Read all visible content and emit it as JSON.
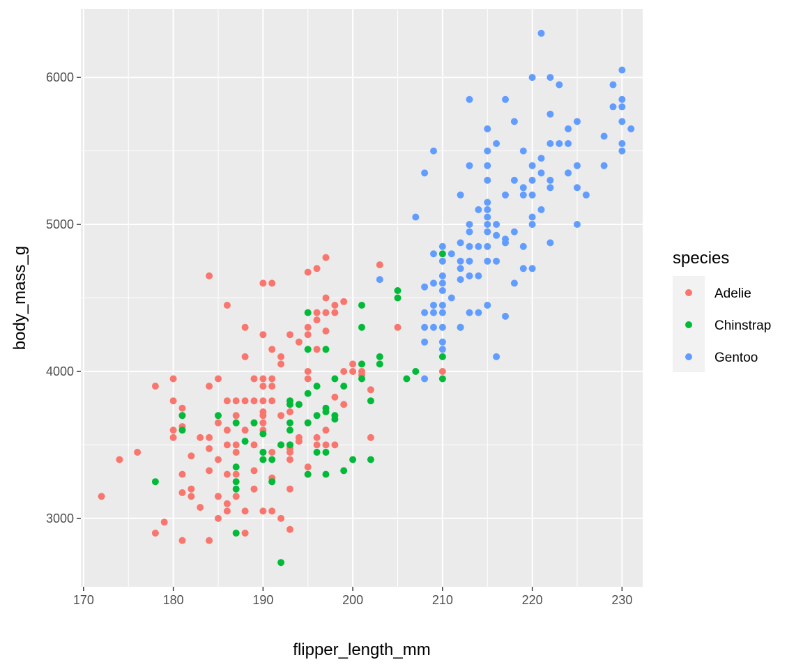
{
  "chart_data": {
    "type": "scatter",
    "xlabel": "flipper_length_mm",
    "ylabel": "body_mass_g",
    "xlim": [
      169.7,
      232.3
    ],
    "ylim": [
      2535,
      6465
    ],
    "x_ticks": [
      170,
      180,
      190,
      200,
      210,
      220,
      230
    ],
    "y_ticks": [
      3000,
      4000,
      5000,
      6000
    ],
    "grid": true,
    "legend": {
      "title": "species",
      "position": "right"
    },
    "series": [
      {
        "name": "Adelie",
        "color": "#F8766D",
        "points": [
          [
            172,
            3150
          ],
          [
            174,
            3400
          ],
          [
            176,
            3450
          ],
          [
            178,
            3900
          ],
          [
            178,
            2900
          ],
          [
            179,
            2975
          ],
          [
            180,
            3950
          ],
          [
            180,
            3800
          ],
          [
            180,
            3600
          ],
          [
            180,
            3550
          ],
          [
            181,
            3750
          ],
          [
            181,
            3700
          ],
          [
            181,
            3625
          ],
          [
            181,
            3300
          ],
          [
            181,
            3175
          ],
          [
            181,
            2850
          ],
          [
            182,
            3425
          ],
          [
            182,
            3200
          ],
          [
            182,
            3150
          ],
          [
            183,
            3550
          ],
          [
            183,
            3075
          ],
          [
            184,
            4650
          ],
          [
            184,
            3900
          ],
          [
            184,
            3550
          ],
          [
            184,
            3475
          ],
          [
            184,
            3325
          ],
          [
            184,
            2850
          ],
          [
            185,
            3950
          ],
          [
            185,
            3650
          ],
          [
            185,
            3400
          ],
          [
            185,
            3150
          ],
          [
            185,
            3000
          ],
          [
            186,
            4450
          ],
          [
            186,
            3800
          ],
          [
            186,
            3600
          ],
          [
            186,
            3500
          ],
          [
            186,
            3300
          ],
          [
            186,
            3100
          ],
          [
            186,
            3050
          ],
          [
            187,
            3800
          ],
          [
            187,
            3700
          ],
          [
            187,
            3500
          ],
          [
            187,
            3450
          ],
          [
            187,
            3300
          ],
          [
            187,
            3150
          ],
          [
            188,
            4300
          ],
          [
            188,
            4100
          ],
          [
            188,
            3800
          ],
          [
            188,
            3600
          ],
          [
            188,
            3050
          ],
          [
            188,
            2900
          ],
          [
            189,
            3950
          ],
          [
            189,
            3800
          ],
          [
            189,
            3650
          ],
          [
            189,
            3500
          ],
          [
            189,
            3325
          ],
          [
            189,
            3200
          ],
          [
            190,
            4600
          ],
          [
            190,
            4250
          ],
          [
            190,
            3950
          ],
          [
            190,
            3900
          ],
          [
            190,
            3800
          ],
          [
            190,
            3725
          ],
          [
            190,
            3700
          ],
          [
            190,
            3650
          ],
          [
            190,
            3600
          ],
          [
            190,
            3450
          ],
          [
            190,
            3400
          ],
          [
            190,
            3050
          ],
          [
            191,
            4600
          ],
          [
            191,
            4150
          ],
          [
            191,
            3950
          ],
          [
            191,
            3900
          ],
          [
            191,
            3800
          ],
          [
            191,
            3450
          ],
          [
            191,
            3275
          ],
          [
            191,
            3250
          ],
          [
            191,
            3050
          ],
          [
            192,
            4100
          ],
          [
            192,
            4050
          ],
          [
            192,
            3700
          ],
          [
            192,
            3500
          ],
          [
            192,
            3000
          ],
          [
            193,
            4250
          ],
          [
            193,
            3800
          ],
          [
            193,
            3725
          ],
          [
            193,
            3500
          ],
          [
            193,
            3475
          ],
          [
            193,
            3450
          ],
          [
            193,
            3400
          ],
          [
            193,
            3200
          ],
          [
            193,
            2925
          ],
          [
            194,
            4200
          ],
          [
            194,
            3775
          ],
          [
            194,
            3550
          ],
          [
            194,
            3525
          ],
          [
            195,
            4675
          ],
          [
            195,
            4300
          ],
          [
            195,
            4250
          ],
          [
            195,
            4000
          ],
          [
            195,
            3950
          ],
          [
            195,
            3650
          ],
          [
            195,
            3350
          ],
          [
            195,
            3300
          ],
          [
            196,
            4700
          ],
          [
            196,
            4400
          ],
          [
            196,
            4350
          ],
          [
            196,
            4150
          ],
          [
            196,
            3550
          ],
          [
            196,
            3500
          ],
          [
            197,
            4775
          ],
          [
            197,
            4500
          ],
          [
            197,
            4400
          ],
          [
            197,
            4275
          ],
          [
            197,
            3600
          ],
          [
            197,
            3500
          ],
          [
            198,
            4450
          ],
          [
            198,
            4400
          ],
          [
            198,
            3825
          ],
          [
            198,
            3500
          ],
          [
            199,
            4475
          ],
          [
            199,
            4000
          ],
          [
            199,
            3775
          ],
          [
            200,
            4050
          ],
          [
            200,
            4000
          ],
          [
            201,
            4000
          ],
          [
            201,
            3975
          ],
          [
            202,
            3875
          ],
          [
            202,
            3550
          ],
          [
            203,
            4725
          ],
          [
            205,
            4300
          ],
          [
            210,
            4000
          ]
        ]
      },
      {
        "name": "Chinstrap",
        "color": "#00BA38",
        "points": [
          [
            178,
            3250
          ],
          [
            181,
            3700
          ],
          [
            181,
            3600
          ],
          [
            185,
            3700
          ],
          [
            187,
            3650
          ],
          [
            187,
            3350
          ],
          [
            187,
            3250
          ],
          [
            187,
            3200
          ],
          [
            187,
            2900
          ],
          [
            188,
            3525
          ],
          [
            189,
            3650
          ],
          [
            190,
            3575
          ],
          [
            190,
            3450
          ],
          [
            190,
            3400
          ],
          [
            191,
            3250
          ],
          [
            191,
            3400
          ],
          [
            192,
            3500
          ],
          [
            192,
            2700
          ],
          [
            193,
            3800
          ],
          [
            193,
            3775
          ],
          [
            193,
            3650
          ],
          [
            193,
            3600
          ],
          [
            193,
            3500
          ],
          [
            194,
            3775
          ],
          [
            195,
            4400
          ],
          [
            195,
            4150
          ],
          [
            195,
            3850
          ],
          [
            195,
            3650
          ],
          [
            195,
            3300
          ],
          [
            196,
            3900
          ],
          [
            196,
            3700
          ],
          [
            196,
            3450
          ],
          [
            197,
            4150
          ],
          [
            197,
            3750
          ],
          [
            197,
            3725
          ],
          [
            197,
            3450
          ],
          [
            197,
            3300
          ],
          [
            198,
            3950
          ],
          [
            198,
            3700
          ],
          [
            198,
            3675
          ],
          [
            199,
            3900
          ],
          [
            199,
            3325
          ],
          [
            200,
            3400
          ],
          [
            201,
            4450
          ],
          [
            201,
            4300
          ],
          [
            201,
            4050
          ],
          [
            201,
            3950
          ],
          [
            202,
            3800
          ],
          [
            202,
            3400
          ],
          [
            203,
            4100
          ],
          [
            203,
            4050
          ],
          [
            205,
            4550
          ],
          [
            205,
            4500
          ],
          [
            206,
            3950
          ],
          [
            207,
            4000
          ],
          [
            210,
            4800
          ],
          [
            210,
            4100
          ],
          [
            210,
            3950
          ],
          [
            212,
            4300
          ]
        ]
      },
      {
        "name": "Gentoo",
        "color": "#619CFF",
        "points": [
          [
            203,
            4625
          ],
          [
            207,
            5050
          ],
          [
            208,
            5350
          ],
          [
            208,
            4575
          ],
          [
            208,
            4400
          ],
          [
            208,
            4300
          ],
          [
            208,
            4200
          ],
          [
            208,
            3950
          ],
          [
            209,
            5500
          ],
          [
            209,
            4800
          ],
          [
            209,
            4600
          ],
          [
            209,
            4450
          ],
          [
            209,
            4400
          ],
          [
            209,
            4300
          ],
          [
            210,
            4850
          ],
          [
            210,
            4750
          ],
          [
            210,
            4650
          ],
          [
            210,
            4600
          ],
          [
            210,
            4550
          ],
          [
            210,
            4450
          ],
          [
            210,
            4400
          ],
          [
            210,
            4300
          ],
          [
            210,
            4200
          ],
          [
            210,
            4150
          ],
          [
            211,
            4800
          ],
          [
            211,
            4500
          ],
          [
            212,
            5200
          ],
          [
            212,
            4875
          ],
          [
            212,
            4750
          ],
          [
            212,
            4700
          ],
          [
            212,
            4625
          ],
          [
            212,
            4300
          ],
          [
            213,
            5850
          ],
          [
            213,
            5400
          ],
          [
            213,
            5000
          ],
          [
            213,
            4950
          ],
          [
            213,
            4850
          ],
          [
            213,
            4750
          ],
          [
            213,
            4650
          ],
          [
            213,
            4400
          ],
          [
            214,
            5100
          ],
          [
            214,
            4850
          ],
          [
            214,
            4650
          ],
          [
            214,
            4400
          ],
          [
            215,
            5650
          ],
          [
            215,
            5500
          ],
          [
            215,
            5400
          ],
          [
            215,
            5300
          ],
          [
            215,
            5150
          ],
          [
            215,
            5100
          ],
          [
            215,
            5050
          ],
          [
            215,
            5000
          ],
          [
            215,
            4950
          ],
          [
            215,
            4850
          ],
          [
            215,
            4750
          ],
          [
            215,
            4450
          ],
          [
            216,
            5550
          ],
          [
            216,
            5000
          ],
          [
            216,
            4925
          ],
          [
            216,
            4750
          ],
          [
            216,
            4100
          ],
          [
            217,
            5850
          ],
          [
            217,
            5200
          ],
          [
            217,
            4900
          ],
          [
            217,
            4875
          ],
          [
            217,
            4375
          ],
          [
            218,
            5700
          ],
          [
            218,
            5300
          ],
          [
            218,
            4950
          ],
          [
            218,
            4600
          ],
          [
            219,
            5500
          ],
          [
            219,
            5250
          ],
          [
            219,
            5200
          ],
          [
            219,
            4850
          ],
          [
            219,
            4700
          ],
          [
            220,
            6000
          ],
          [
            220,
            5400
          ],
          [
            220,
            5300
          ],
          [
            220,
            5200
          ],
          [
            220,
            5050
          ],
          [
            220,
            5000
          ],
          [
            220,
            4700
          ],
          [
            221,
            6300
          ],
          [
            221,
            5450
          ],
          [
            221,
            5350
          ],
          [
            221,
            5100
          ],
          [
            222,
            6000
          ],
          [
            222,
            5750
          ],
          [
            222,
            5550
          ],
          [
            222,
            5300
          ],
          [
            222,
            5250
          ],
          [
            222,
            4875
          ],
          [
            223,
            5950
          ],
          [
            223,
            5550
          ],
          [
            224,
            5650
          ],
          [
            224,
            5550
          ],
          [
            224,
            5350
          ],
          [
            225,
            5700
          ],
          [
            225,
            5400
          ],
          [
            225,
            5250
          ],
          [
            225,
            5000
          ],
          [
            226,
            5200
          ],
          [
            228,
            5600
          ],
          [
            228,
            5400
          ],
          [
            229,
            5950
          ],
          [
            229,
            5800
          ],
          [
            230,
            6050
          ],
          [
            230,
            5850
          ],
          [
            230,
            5800
          ],
          [
            230,
            5700
          ],
          [
            230,
            5550
          ],
          [
            230,
            5500
          ],
          [
            231,
            5650
          ]
        ]
      }
    ]
  }
}
